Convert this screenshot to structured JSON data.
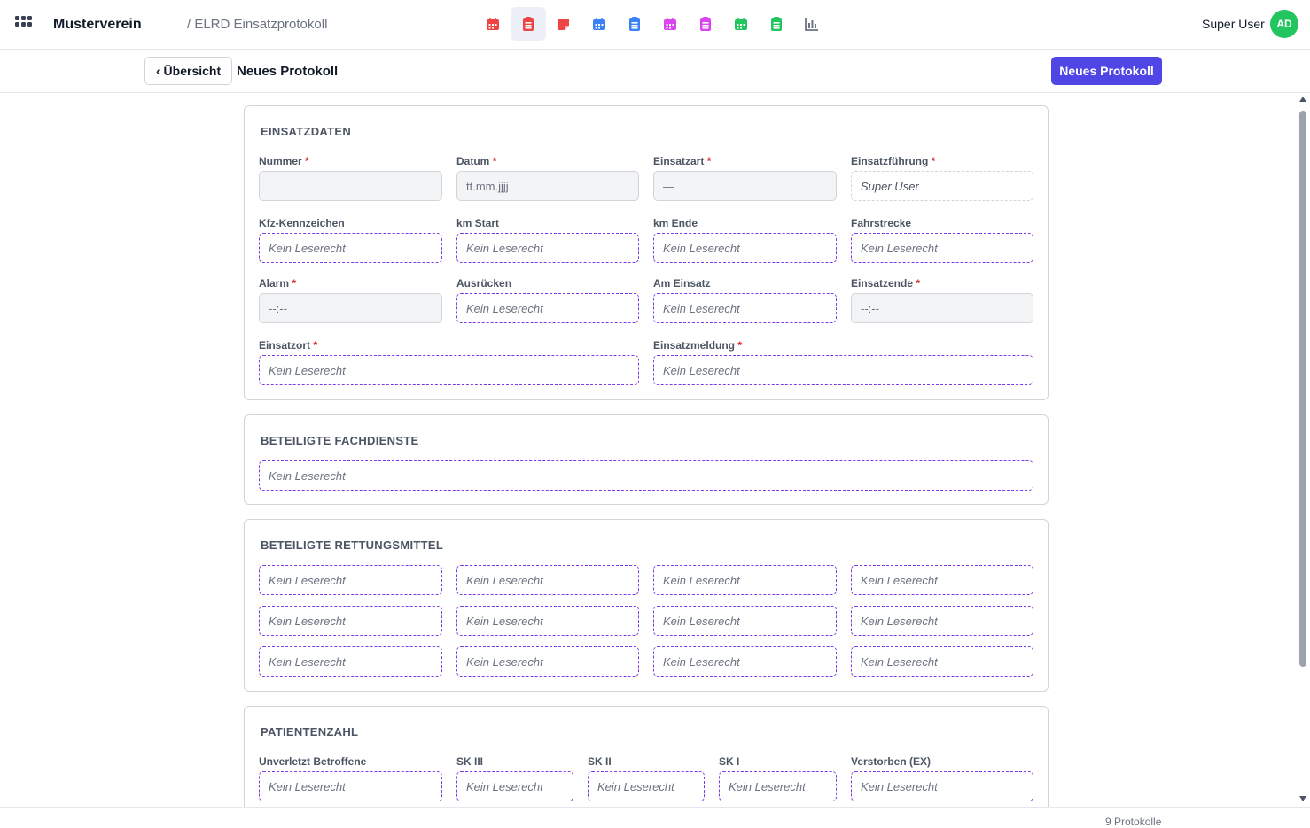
{
  "header": {
    "org": "Musterverein",
    "breadcrumb": "/ ELRD Einsatzprotokoll",
    "user_name": "Super User",
    "avatar_initials": "AD",
    "avatar_color": "#22c55e",
    "apps": [
      {
        "icon": "calendar-icon",
        "color": "#ef4444"
      },
      {
        "icon": "list-icon",
        "color": "#ef4444"
      },
      {
        "icon": "note-icon",
        "color": "#ef4444"
      },
      {
        "icon": "calendar-icon",
        "color": "#3b82f6"
      },
      {
        "icon": "list-icon",
        "color": "#3b82f6"
      },
      {
        "icon": "calendar-icon",
        "color": "#d946ef"
      },
      {
        "icon": "list-icon",
        "color": "#d946ef"
      },
      {
        "icon": "calendar-icon",
        "color": "#22c55e"
      },
      {
        "icon": "list-icon",
        "color": "#22c55e"
      },
      {
        "icon": "chart-icon",
        "color": "#6b7280"
      }
    ]
  },
  "toolbar": {
    "back_label": "‹ Übersicht",
    "title": "Neues Protokoll",
    "new_label": "Neues Protokoll",
    "accent": "#4f46e5"
  },
  "einsatzdaten": {
    "title": "EINSATZDATEN",
    "nummer": {
      "label": "Nummer",
      "value": ""
    },
    "datum": {
      "label": "Datum",
      "placeholder": "tt.mm.jjjj"
    },
    "einsatzart": {
      "label": "Einsatzart",
      "value": "—"
    },
    "einsatzfuehrung": {
      "label": "Einsatzführung",
      "value": "Super User"
    },
    "kfz": {
      "label": "Kfz-Kennzeichen",
      "value": "Kein Leserecht"
    },
    "km_start": {
      "label": "km Start",
      "value": "Kein Leserecht"
    },
    "km_ende": {
      "label": "km Ende",
      "value": "Kein Leserecht"
    },
    "fahrstrecke": {
      "label": "Fahrstrecke",
      "value": "Kein Leserecht"
    },
    "alarm": {
      "label": "Alarm",
      "value": "--:--"
    },
    "ausruecken": {
      "label": "Ausrücken",
      "value": "Kein Leserecht"
    },
    "am_einsatz": {
      "label": "Am Einsatz",
      "value": "Kein Leserecht"
    },
    "einsatzende": {
      "label": "Einsatzende",
      "value": "--:--"
    },
    "einsatzort": {
      "label": "Einsatzort",
      "value": "Kein Leserecht"
    },
    "einsatzmeldung": {
      "label": "Einsatzmeldung",
      "value": "Kein Leserecht"
    }
  },
  "fachdienste": {
    "title": "BETEILIGTE FACHDIENSTE",
    "value": "Kein Leserecht"
  },
  "rettungsmittel": {
    "title": "BETEILIGTE RETTUNGSMITTEL",
    "values": [
      "Kein Leserecht",
      "Kein Leserecht",
      "Kein Leserecht",
      "Kein Leserecht",
      "Kein Leserecht",
      "Kein Leserecht",
      "Kein Leserecht",
      "Kein Leserecht",
      "Kein Leserecht",
      "Kein Leserecht",
      "Kein Leserecht",
      "Kein Leserecht"
    ]
  },
  "patientenzahl": {
    "title": "PATIENTENZAHL",
    "unverletzt": {
      "label": "Unverletzt Betroffene",
      "value": "Kein Leserecht"
    },
    "sk3": {
      "label": "SK III",
      "value": "Kein Leserecht"
    },
    "sk2": {
      "label": "SK II",
      "value": "Kein Leserecht"
    },
    "sk1": {
      "label": "SK I",
      "value": "Kein Leserecht"
    },
    "verstorben": {
      "label": "Verstorben (EX)",
      "value": "Kein Leserecht"
    }
  },
  "footer": {
    "count": "9 Protokolle"
  },
  "required_marker": "*"
}
